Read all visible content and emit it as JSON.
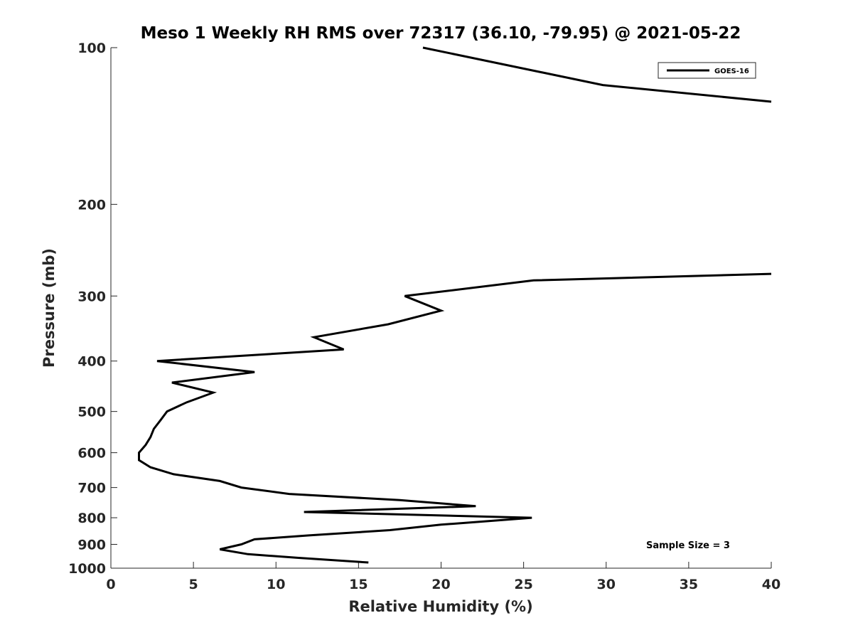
{
  "chart_data": {
    "type": "line",
    "title": "Meso 1 Weekly RH RMS over 72317 (36.10, -79.95) @ 2021-05-22",
    "xlabel": "Relative Humidity (%)",
    "ylabel": "Pressure (mb)",
    "xlim": [
      0,
      40
    ],
    "ylim": [
      1000,
      100
    ],
    "yscale": "log",
    "y_reversed": true,
    "x_ticks": [
      0,
      5,
      10,
      15,
      20,
      25,
      30,
      35,
      40
    ],
    "y_ticks": [
      100,
      200,
      300,
      400,
      500,
      600,
      700,
      800,
      900,
      1000
    ],
    "legend": "top-right",
    "annotation": "Sample Size = 3",
    "series": [
      {
        "name": "GOES-16",
        "color": "#000000",
        "points": [
          {
            "x": 15.6,
            "p": 975
          },
          {
            "x": 11.3,
            "p": 955
          },
          {
            "x": 8.3,
            "p": 940
          },
          {
            "x": 6.6,
            "p": 920
          },
          {
            "x": 7.9,
            "p": 900
          },
          {
            "x": 8.7,
            "p": 880
          },
          {
            "x": 12.0,
            "p": 865
          },
          {
            "x": 16.9,
            "p": 845
          },
          {
            "x": 20.0,
            "p": 825
          },
          {
            "x": 25.5,
            "p": 800
          },
          {
            "x": 11.7,
            "p": 780
          },
          {
            "x": 22.1,
            "p": 760
          },
          {
            "x": 17.5,
            "p": 740
          },
          {
            "x": 10.8,
            "p": 720
          },
          {
            "x": 7.9,
            "p": 700
          },
          {
            "x": 6.6,
            "p": 680
          },
          {
            "x": 3.8,
            "p": 660
          },
          {
            "x": 2.4,
            "p": 640
          },
          {
            "x": 1.7,
            "p": 620
          },
          {
            "x": 1.7,
            "p": 600
          },
          {
            "x": 2.1,
            "p": 580
          },
          {
            "x": 2.4,
            "p": 560
          },
          {
            "x": 2.6,
            "p": 540
          },
          {
            "x": 3.0,
            "p": 520
          },
          {
            "x": 3.4,
            "p": 500
          },
          {
            "x": 4.6,
            "p": 480
          },
          {
            "x": 6.2,
            "p": 460
          },
          {
            "x": 3.7,
            "p": 440
          },
          {
            "x": 8.7,
            "p": 420
          },
          {
            "x": 2.8,
            "p": 400
          },
          {
            "x": 14.1,
            "p": 380
          },
          {
            "x": 12.3,
            "p": 360
          },
          {
            "x": 16.8,
            "p": 340
          },
          {
            "x": 20.0,
            "p": 320
          },
          {
            "x": 17.8,
            "p": 300
          },
          {
            "x": 25.6,
            "p": 280
          },
          {
            "x": 40.0,
            "p": 272
          }
        ]
      },
      {
        "name": "GOES-16",
        "color": "#000000",
        "points": [
          {
            "x": 18.9,
            "p": 100
          },
          {
            "x": 29.8,
            "p": 118
          },
          {
            "x": 40.0,
            "p": 127
          }
        ]
      }
    ]
  }
}
